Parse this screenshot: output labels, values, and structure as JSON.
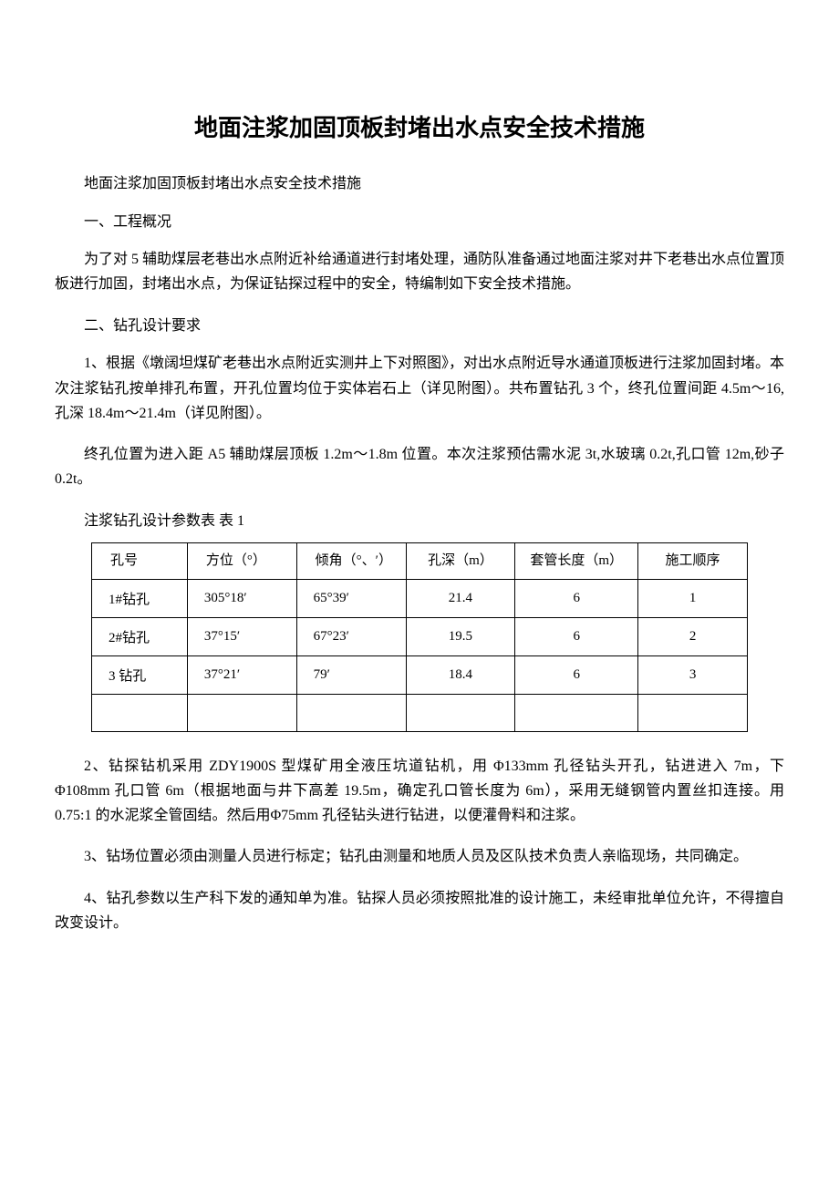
{
  "title": "地面注浆加固顶板封堵出水点安全技术措施",
  "subtitle": "地面注浆加固顶板封堵出水点安全技术措施",
  "section1_heading": "一、工程概况",
  "para1": "为了对 5 辅助煤层老巷出水点附近补给通道进行封堵处理，通防队准备通过地面注浆对井下老巷出水点位置顶板进行加固，封堵出水点，为保证钻探过程中的安全，特编制如下安全技术措施。",
  "section2_heading": "二、钻孔设计要求",
  "para2": "1、根据《墩阔坦煤矿老巷出水点附近实测井上下对照图》，对出水点附近导水通道顶板进行注浆加固封堵。本次注浆钻孔按单排孔布置，开孔位置均位于实体岩石上（详见附图）。共布置钻孔 3 个，终孔位置间距 4.5m～16,孔深 18.4m～21.4m（详见附图）。",
  "para3": "终孔位置为进入距 A5 辅助煤层顶板 1.2m～1.8m 位置。本次注浆预估需水泥 3t,水玻璃 0.2t,孔口管 12m,砂子 0.2t。",
  "table_caption": "注浆钻孔设计参数表 表 1",
  "table": {
    "headers": {
      "hole_no": "孔号",
      "azimuth": "方位（°）",
      "angle": "倾角（°、′）",
      "depth": "孔深（m）",
      "casing": "套管长度（m）",
      "order": "施工顺序"
    },
    "rows": [
      {
        "hole_no": "1#钻孔",
        "azimuth": "305°18′",
        "angle": "65°39′",
        "depth": "21.4",
        "casing": "6",
        "order": "1"
      },
      {
        "hole_no": "2#钻孔",
        "azimuth": "37°15′",
        "angle": "67°23′",
        "depth": "19.5",
        "casing": "6",
        "order": "2"
      },
      {
        "hole_no": "3 钻孔",
        "azimuth": "37°21′",
        "angle": "79′",
        "depth": "18.4",
        "casing": "6",
        "order": "3"
      }
    ]
  },
  "para4": "2、钻探钻机采用 ZDY1900S 型煤矿用全液压坑道钻机，用 Φ133mm 孔径钻头开孔，钻进进入 7m，下 Φ108mm 孔口管 6m（根据地面与井下高差 19.5m，确定孔口管长度为 6m），采用无缝钢管内置丝扣连接。用 0.75:1 的水泥浆全管固结。然后用Φ75mm 孔径钻头进行钻进，以便灌骨料和注浆。",
  "para5": "3、钻场位置必须由测量人员进行标定；钻孔由测量和地质人员及区队技术负责人亲临现场，共同确定。",
  "para6": "4、钻孔参数以生产科下发的通知单为准。钻探人员必须按照批准的设计施工，未经审批单位允许，不得擅自改变设计。"
}
